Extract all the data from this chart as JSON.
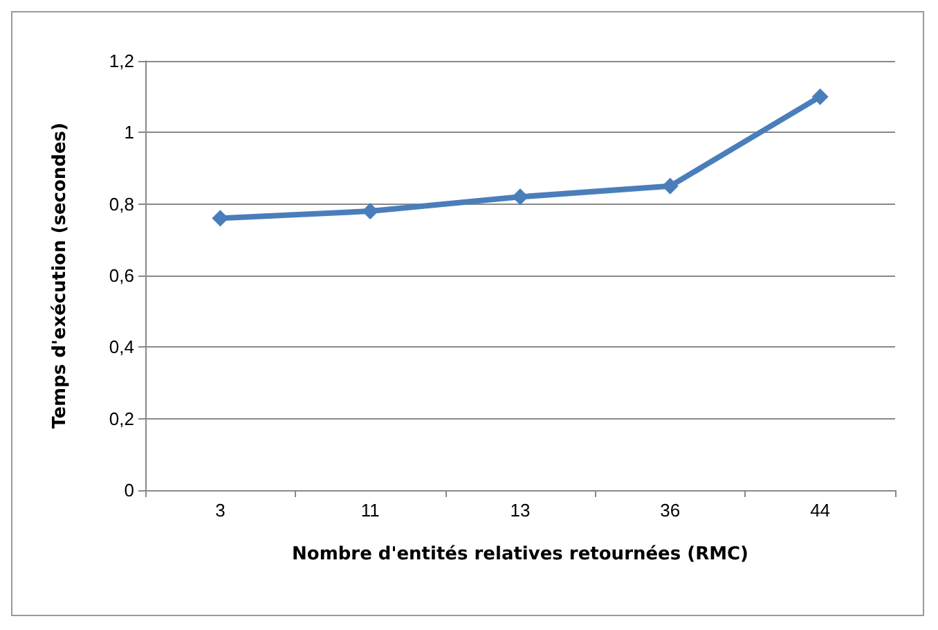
{
  "chart_data": {
    "type": "line",
    "xlabel": "Nombre d'entités relatives retournées (RMC)",
    "ylabel": "Temps d'exécution (secondes)",
    "categories": [
      "3",
      "11",
      "13",
      "36",
      "44"
    ],
    "series": [
      {
        "color": "#4a7ebb",
        "values": [
          0.76,
          0.78,
          0.82,
          0.85,
          1.1
        ]
      }
    ],
    "ylim": [
      0,
      1.2
    ],
    "yticks": [
      0,
      {
        "value": 0.2,
        "label": "0,2"
      },
      {
        "value": 0.4,
        "label": "0,4"
      },
      {
        "value": 0.6,
        "label": "0,6"
      },
      {
        "value": 0.8,
        "label": "0,8"
      },
      1,
      {
        "value": 1.2,
        "label": "1,2"
      }
    ],
    "grid": "y",
    "marker": "diamond",
    "line_style": "solid"
  }
}
